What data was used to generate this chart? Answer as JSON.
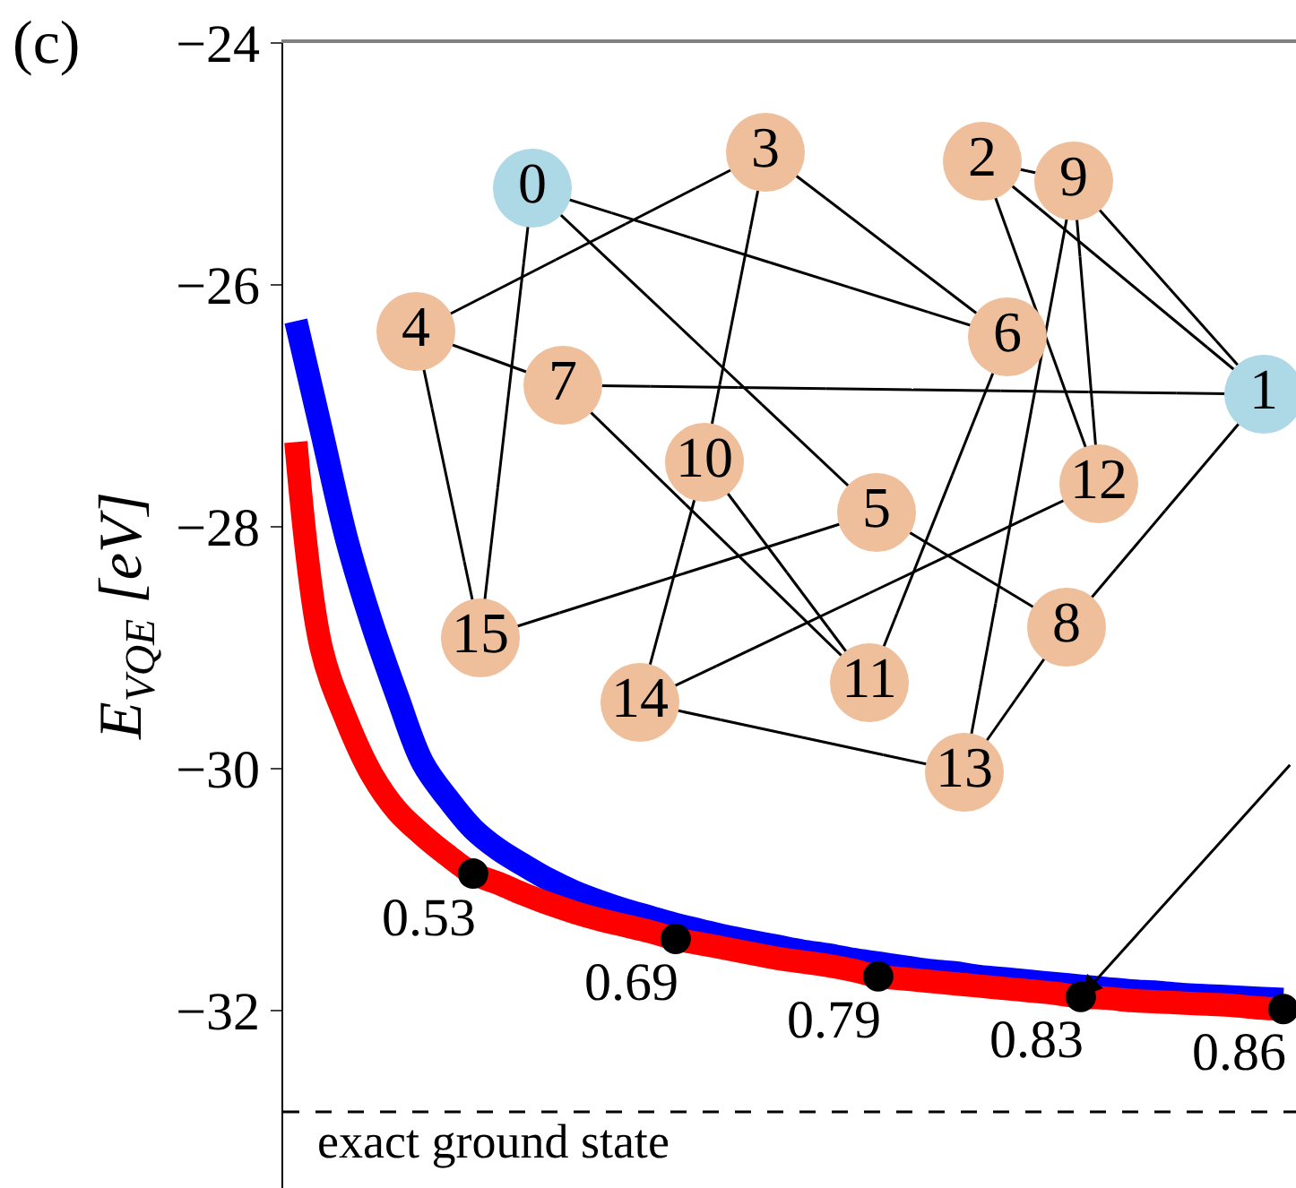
{
  "chart_data": [
    {
      "type": "line",
      "title": "(c)",
      "ylabel": "E$_{VQE}$ [eV]",
      "categories": [
        null,
        null,
        null,
        null,
        null,
        null,
        null,
        null,
        null,
        null,
        null,
        null,
        null,
        null,
        null,
        null,
        null,
        null,
        null,
        null,
        null,
        null,
        null,
        null,
        null,
        null,
        null,
        null,
        null,
        null,
        null,
        null,
        null,
        null,
        null,
        null,
        null,
        null,
        null,
        null
      ],
      "series": [
        {
          "color": "#0000ff",
          "values": [
            -26.3,
            -27.2,
            -28.1,
            -28.8,
            -29.4,
            -29.95,
            -30.25,
            -30.5,
            -30.67,
            -30.8,
            -30.92,
            -31.02,
            -31.1,
            -31.17,
            -31.23,
            -31.29,
            -31.34,
            -31.39,
            -31.43,
            -31.47,
            -31.51,
            -31.54,
            -31.58,
            -31.61,
            -31.64,
            -31.67,
            -31.69,
            -31.72,
            -31.74,
            -31.76,
            -31.78,
            -31.8,
            -31.82,
            -31.84,
            -31.85,
            -31.87,
            -31.88,
            -31.89,
            -31.9,
            -31.91
          ]
        },
        {
          "color": "#ff0000",
          "values": [
            -27.3,
            -29.0,
            -29.6,
            -30.05,
            -30.35,
            -30.55,
            -30.72,
            -30.87,
            -30.95,
            -31.04,
            -31.12,
            -31.19,
            -31.25,
            -31.3,
            -31.35,
            -31.41,
            -31.45,
            -31.49,
            -31.53,
            -31.57,
            -31.6,
            -31.63,
            -31.67,
            -31.72,
            -31.74,
            -31.76,
            -31.78,
            -31.8,
            -31.82,
            -31.84,
            -31.86,
            -31.89,
            -31.9,
            -31.92,
            -31.93,
            -31.94,
            -31.95,
            -31.96,
            -31.98,
            -31.99
          ]
        },
        {
          "type": "scatter",
          "color": "#000000",
          "values": [
            null,
            null,
            null,
            null,
            null,
            null,
            null,
            -30.87,
            null,
            null,
            null,
            null,
            null,
            null,
            null,
            -31.41,
            null,
            null,
            null,
            null,
            null,
            null,
            null,
            -31.72,
            null,
            null,
            null,
            null,
            null,
            null,
            null,
            -31.89,
            null,
            null,
            null,
            null,
            null,
            null,
            null,
            -31.99
          ]
        }
      ],
      "annotations": [
        "0.53",
        "0.69",
        "0.79",
        "0.83",
        "0.86"
      ],
      "ylim": [
        -33.47,
        -24
      ],
      "yticks": [
        {
          "value": -24,
          "label": "−24"
        },
        {
          "value": -26,
          "label": "−26"
        },
        {
          "value": -28,
          "label": "−28"
        },
        {
          "value": -30,
          "label": "−30"
        },
        {
          "value": -32,
          "label": "−32"
        }
      ],
      "ref_lines": [
        {
          "axis": "y",
          "value": -32.84,
          "label": "exact ground state",
          "color": "#000000",
          "line_style": "dashed"
        }
      ],
      "tick_labels": "y",
      "line_style": "solid"
    },
    {
      "type": "other",
      "categories": [
        "0",
        "1",
        "2",
        "3",
        "4",
        "5",
        "6",
        "7",
        "8",
        "9",
        "10",
        "11",
        "12",
        "13",
        "14",
        "15"
      ],
      "colors": [
        "#add8e6",
        "#add8e6",
        "#eebf9a",
        "#eebf9a",
        "#eebf9a",
        "#eebf9a",
        "#eebf9a",
        "#eebf9a",
        "#eebf9a",
        "#eebf9a",
        "#eebf9a",
        "#eebf9a",
        "#eebf9a",
        "#eebf9a",
        "#eebf9a",
        "#eebf9a"
      ]
    }
  ]
}
